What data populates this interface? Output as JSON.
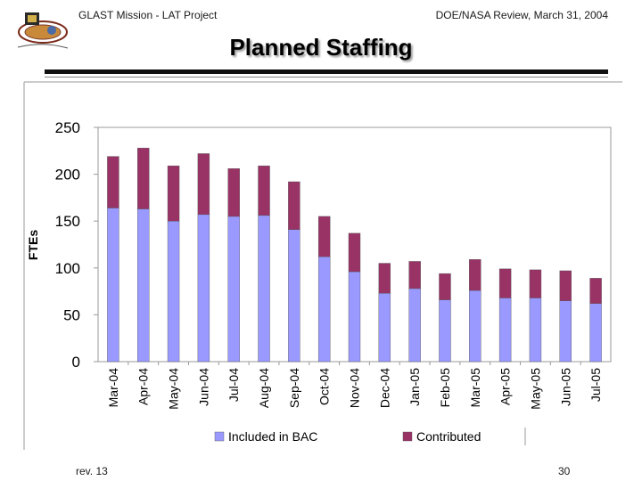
{
  "header": {
    "left_text": "GLAST Mission - LAT Project",
    "right_text": "DOE/NASA Review, March 31, 2004"
  },
  "slide_title": "Planned Staffing",
  "footer": {
    "revision": "rev. 13",
    "page_number": "30"
  },
  "colors": {
    "included": "#9999ff",
    "contributed": "#993366",
    "plot_border": "#9a9a9a"
  },
  "chart_data": {
    "type": "bar",
    "stacked": true,
    "title": "",
    "xlabel": "",
    "ylabel": "FTEs",
    "ylim": [
      0,
      250
    ],
    "yticks": [
      0,
      50,
      100,
      150,
      200,
      250
    ],
    "grid": false,
    "legend_position": "bottom",
    "categories": [
      "Mar-04",
      "Apr-04",
      "May-04",
      "Jun-04",
      "Jul-04",
      "Aug-04",
      "Sep-04",
      "Oct-04",
      "Nov-04",
      "Dec-04",
      "Jan-05",
      "Feb-05",
      "Mar-05",
      "Apr-05",
      "May-05",
      "Jun-05",
      "Jul-05"
    ],
    "series": [
      {
        "name": "Included in BAC",
        "values": [
          164,
          163,
          150,
          157,
          155,
          156,
          141,
          112,
          96,
          73,
          78,
          66,
          76,
          68,
          68,
          65,
          62
        ]
      },
      {
        "name": "Contributed",
        "values": [
          55,
          65,
          59,
          65,
          51,
          53,
          51,
          43,
          41,
          32,
          29,
          28,
          33,
          31,
          30,
          32,
          27
        ]
      }
    ]
  }
}
